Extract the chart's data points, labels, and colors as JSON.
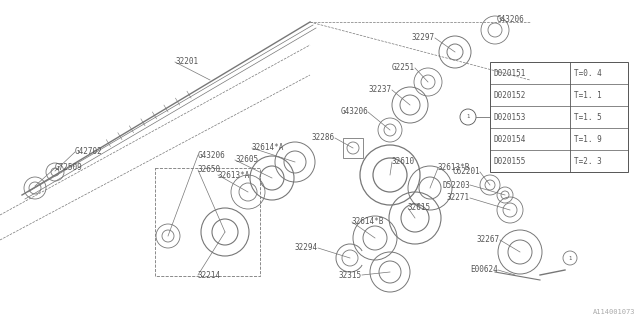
{
  "bg_color": "#ffffff",
  "diagram_color": "#777777",
  "text_color": "#555555",
  "watermark": "A114001073",
  "table": {
    "rows": [
      [
        "D020151",
        "T=0. 4"
      ],
      [
        "D020152",
        "T=1. 1"
      ],
      [
        "D020153",
        "T=1. 5"
      ],
      [
        "D020154",
        "T=1. 9"
      ],
      [
        "D020155",
        "T=2. 3"
      ]
    ]
  }
}
